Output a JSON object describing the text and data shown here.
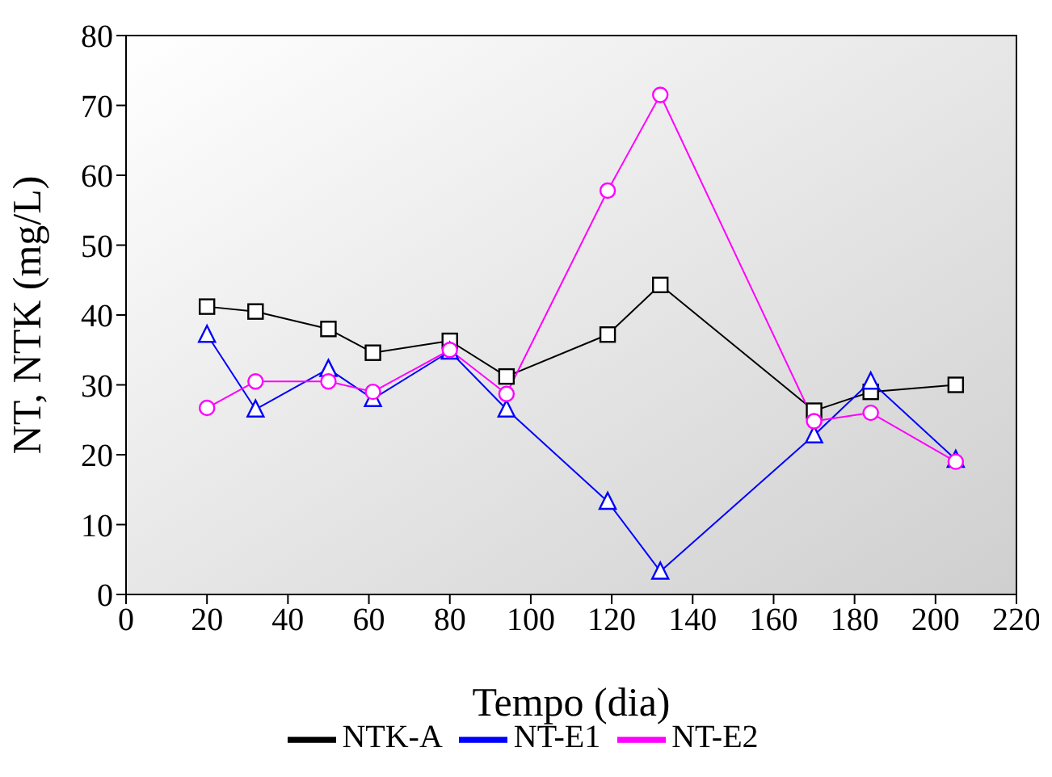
{
  "chart_data": {
    "type": "line",
    "xlabel": "Tempo (dia)",
    "ylabel": "NT, NTK (mg/L)",
    "x": [
      20,
      32,
      50,
      61,
      80,
      94,
      119,
      132,
      170,
      184,
      205
    ],
    "xlim": [
      0,
      220
    ],
    "xticks": [
      0,
      20,
      40,
      60,
      80,
      100,
      120,
      140,
      160,
      180,
      200,
      220
    ],
    "ylim": [
      0,
      80
    ],
    "yticks": [
      0,
      10,
      20,
      30,
      40,
      50,
      60,
      70,
      80
    ],
    "legend": "bottom",
    "line_style": "solid",
    "series": [
      {
        "name": "NTK-A",
        "color": "#000000",
        "marker": "square",
        "values": [
          41.2,
          40.5,
          38,
          34.6,
          36.3,
          31.2,
          37.2,
          44.3,
          26.3,
          29,
          30
        ]
      },
      {
        "name": "NT-E1",
        "color": "#0000ff",
        "marker": "triangle",
        "values": [
          37.2,
          26.5,
          32.3,
          28,
          34.8,
          26.5,
          13.3,
          3.3,
          22.8,
          30.5,
          19.3
        ]
      },
      {
        "name": "NT-E2",
        "color": "#ff00ff",
        "marker": "circle",
        "values": [
          26.7,
          30.5,
          30.5,
          29,
          35,
          28.7,
          57.8,
          71.5,
          24.8,
          26,
          19
        ]
      }
    ]
  }
}
